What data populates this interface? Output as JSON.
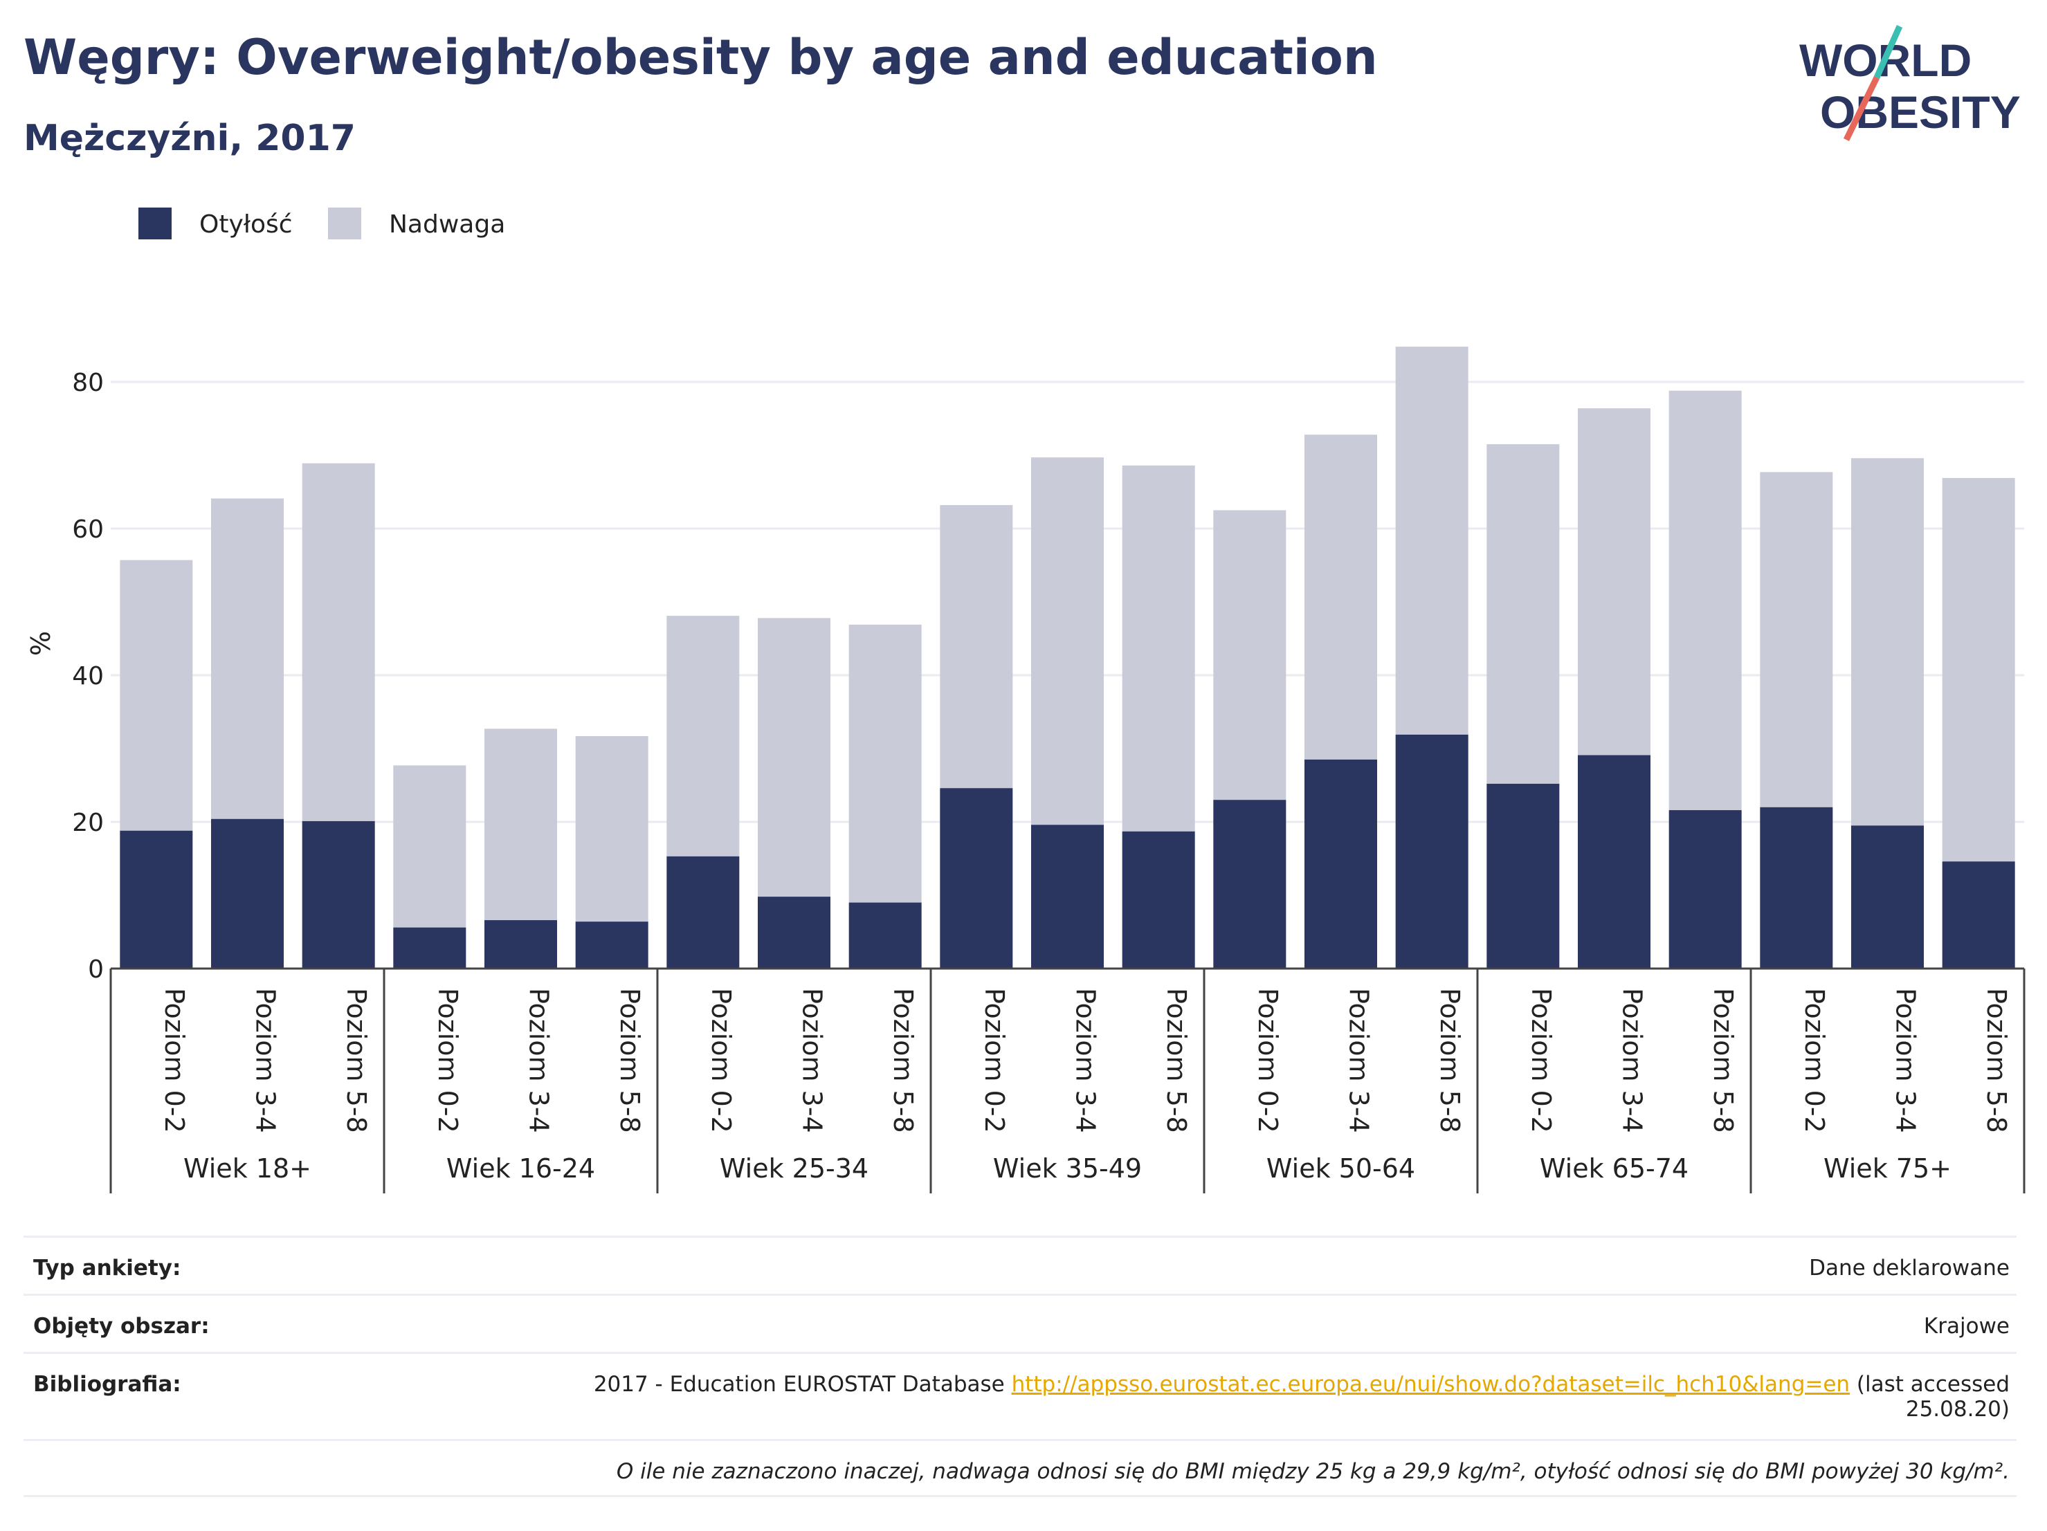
{
  "header": {
    "title": "Węgry: Overweight/obesity by age and education",
    "subtitle": "Mężczyźni, 2017"
  },
  "logo": {
    "line1": "WORLD",
    "line2": "OBESITY"
  },
  "colors": {
    "obesity": "#2a3560",
    "overweight": "#c9ccd8",
    "title": "#2a3560",
    "link": "#e6a800"
  },
  "chart_data": {
    "type": "bar",
    "stacked": true,
    "ylabel": "%",
    "ylim": [
      0,
      85
    ],
    "yticks": [
      0,
      20,
      40,
      60,
      80
    ],
    "grid": true,
    "legend_position": "top-left",
    "groups": [
      {
        "name": "Wiek 18+",
        "categories": [
          "Poziom 0-2",
          "Poziom 3-4",
          "Poziom 5-8"
        ]
      },
      {
        "name": "Wiek 16-24",
        "categories": [
          "Poziom 0-2",
          "Poziom 3-4",
          "Poziom 5-8"
        ]
      },
      {
        "name": "Wiek 25-34",
        "categories": [
          "Poziom 0-2",
          "Poziom 3-4",
          "Poziom 5-8"
        ]
      },
      {
        "name": "Wiek 35-49",
        "categories": [
          "Poziom 0-2",
          "Poziom 3-4",
          "Poziom 5-8"
        ]
      },
      {
        "name": "Wiek 50-64",
        "categories": [
          "Poziom 0-2",
          "Poziom 3-4",
          "Poziom 5-8"
        ]
      },
      {
        "name": "Wiek 65-74",
        "categories": [
          "Poziom 0-2",
          "Poziom 3-4",
          "Poziom 5-8"
        ]
      },
      {
        "name": "Wiek 75+",
        "categories": [
          "Poziom 0-2",
          "Poziom 3-4",
          "Poziom 5-8"
        ]
      }
    ],
    "series": [
      {
        "name": "Otyłość",
        "color": "#2a3560",
        "values": [
          18.8,
          20.4,
          20.1,
          5.6,
          6.6,
          6.4,
          15.3,
          9.8,
          9.0,
          24.6,
          19.6,
          18.7,
          23.0,
          28.5,
          31.9,
          25.2,
          29.1,
          21.6,
          22.0,
          19.5,
          14.6
        ]
      },
      {
        "name": "Nadwaga",
        "color": "#c9ccd8",
        "values": [
          36.9,
          43.7,
          48.8,
          22.1,
          26.1,
          25.3,
          32.8,
          38.0,
          37.9,
          38.6,
          50.1,
          49.9,
          39.5,
          44.3,
          52.9,
          46.3,
          47.3,
          57.2,
          45.7,
          50.1,
          52.3
        ]
      }
    ]
  },
  "meta": {
    "survey_label": "Typ ankiety:",
    "survey_value": "Dane deklarowane",
    "area_label": "Objęty obszar:",
    "area_value": "Krajowe",
    "biblio_label": "Bibliografia:",
    "biblio_prefix": "2017 - Education EUROSTAT Database",
    "biblio_link": "http://appsso.eurostat.ec.europa.eu/nui/show.do?dataset=ilc_hch10&lang=en",
    "biblio_suffix": "(last accessed",
    "biblio_date": "25.08.20)",
    "footnote": "O ile nie zaznaczono inaczej, nadwaga odnosi się do BMI między 25 kg a 29,9 kg/m², otyłość odnosi się do BMI powyżej 30 kg/m²."
  }
}
